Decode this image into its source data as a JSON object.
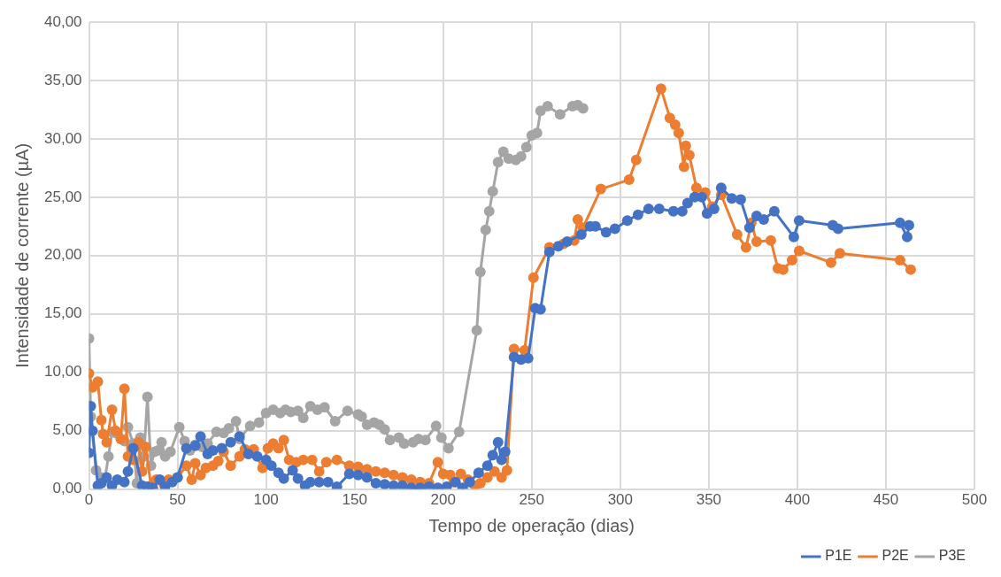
{
  "chart_data": {
    "type": "line",
    "xlabel": "Tempo de operação (dias)",
    "ylabel": "Intensidade de corrente (µA)",
    "xlim": [
      0,
      500
    ],
    "xticks": [
      0,
      50,
      100,
      150,
      200,
      250,
      300,
      350,
      400,
      450,
      500
    ],
    "ylim": [
      0,
      40
    ],
    "yticks": [
      {
        "value": 0,
        "label": "0,00"
      },
      {
        "value": 5,
        "label": "5,00"
      },
      {
        "value": 10,
        "label": "10,00"
      },
      {
        "value": 15,
        "label": "15,00"
      },
      {
        "value": 20,
        "label": "20,00"
      },
      {
        "value": 25,
        "label": "25,00"
      },
      {
        "value": 30,
        "label": "30,00"
      },
      {
        "value": 35,
        "label": "35,00"
      },
      {
        "value": 40,
        "label": "40,00"
      }
    ],
    "grid": true,
    "legend": "bottom right",
    "marker": "circle",
    "line_style": "solid",
    "series": [
      {
        "name": "P1E",
        "color": "#4472c4",
        "x": [
          0,
          1,
          2,
          5,
          7,
          10,
          13,
          16,
          20,
          22,
          25,
          30,
          33,
          36,
          40,
          43,
          47,
          50,
          55,
          60,
          63,
          67,
          70,
          75,
          80,
          85,
          90,
          95,
          100,
          103,
          107,
          110,
          115,
          118,
          122,
          125,
          130,
          135,
          140,
          147,
          152,
          157,
          162,
          167,
          172,
          177,
          182,
          187,
          192,
          197,
          202,
          207,
          211,
          215,
          220,
          225,
          228,
          231,
          233,
          235,
          240,
          244,
          248,
          252,
          255,
          260,
          265,
          270,
          278,
          283,
          286,
          292,
          297,
          304,
          310,
          316,
          322,
          330,
          335,
          338,
          342,
          346,
          349,
          353,
          357,
          363,
          368,
          373,
          377,
          381,
          387,
          398,
          401,
          420,
          423,
          458,
          462,
          463
        ],
        "values": [
          3.1,
          7.1,
          5,
          0.3,
          0.5,
          1,
          0.3,
          0.8,
          0.6,
          1.5,
          3.5,
          0.3,
          0.2,
          0.1,
          0.8,
          0.2,
          0.6,
          1,
          3.5,
          3.7,
          4.5,
          3,
          3.3,
          3.5,
          4,
          4.5,
          3,
          2.8,
          2.5,
          2,
          1.4,
          0.9,
          1.6,
          0.9,
          0.3,
          0.6,
          0.6,
          0.6,
          0.2,
          1.3,
          1.2,
          1,
          0.5,
          0.4,
          0.3,
          0.3,
          0.1,
          0.1,
          0.2,
          0.1,
          0.2,
          0.6,
          0.1,
          0.6,
          1.4,
          2,
          2.9,
          4,
          2.5,
          3.2,
          11.3,
          11.1,
          11.2,
          15.5,
          15.4,
          20.3,
          20.8,
          21.2,
          21.8,
          22.5,
          22.5,
          22,
          22.3,
          23,
          23.5,
          24,
          24,
          23.8,
          23.8,
          24.5,
          25,
          25,
          23.6,
          24,
          25.8,
          24.9,
          24.8,
          22.4,
          23.4,
          23.1,
          23.8,
          21.6,
          23,
          22.6,
          22.3,
          22.8,
          21.6,
          22.6
        ]
      },
      {
        "name": "P2E",
        "color": "#ed7d31",
        "x": [
          0,
          2,
          5,
          7,
          8,
          10,
          13,
          15,
          18,
          20,
          22,
          25,
          28,
          30,
          32,
          35,
          38,
          42,
          45,
          50,
          55,
          58,
          60,
          63,
          66,
          70,
          73,
          76,
          80,
          85,
          88,
          93,
          98,
          101,
          104,
          107,
          110,
          113,
          117,
          121,
          126,
          130,
          134,
          140,
          147,
          152,
          157,
          162,
          167,
          172,
          177,
          182,
          187,
          192,
          197,
          200,
          204,
          206,
          210,
          214,
          218,
          221,
          225,
          229,
          233,
          236,
          240,
          246,
          251,
          260,
          268,
          274,
          276,
          279,
          289,
          305,
          309,
          323,
          328,
          331,
          333,
          336,
          337,
          339,
          343,
          348,
          352,
          357,
          366,
          371,
          374,
          377,
          385,
          389,
          392,
          397,
          401,
          419,
          424,
          458,
          464
        ],
        "values": [
          9.9,
          8.7,
          9.2,
          5.9,
          4.7,
          4,
          6.8,
          5,
          4.3,
          8.6,
          2.8,
          2.5,
          4,
          1.5,
          3.6,
          0.3,
          0.8,
          0.5,
          0.8,
          1,
          2,
          0.8,
          2.2,
          1.2,
          1.8,
          2,
          2.4,
          3.2,
          2,
          2.8,
          3.4,
          3.4,
          1.8,
          3.5,
          3.9,
          3.5,
          4.2,
          2.5,
          2.3,
          2.5,
          2.5,
          1.5,
          2.3,
          2.5,
          2,
          1.9,
          1.7,
          1.5,
          1.4,
          1.2,
          1,
          0.8,
          0.6,
          0.5,
          2.3,
          1.3,
          1.2,
          0.6,
          1.3,
          0.8,
          0.3,
          0.5,
          1,
          1.5,
          1,
          1.6,
          12,
          11.9,
          18.1,
          20.7,
          21,
          21.3,
          23.1,
          22.4,
          25.7,
          26.5,
          28.2,
          34.3,
          31.8,
          31.2,
          30.5,
          27.6,
          29.4,
          28.6,
          25.8,
          25.4,
          24.2,
          25.2,
          21.8,
          20.7,
          22.8,
          21.2,
          21.3,
          18.9,
          18.8,
          19.6,
          20.4,
          19.4,
          20.2,
          19.6,
          18.8
        ]
      },
      {
        "name": "P3E",
        "color": "#a5a5a5",
        "x": [
          0,
          1,
          4,
          7,
          9,
          11,
          13,
          15,
          18,
          20,
          22,
          25,
          27,
          29,
          31,
          33,
          35,
          37,
          39,
          41,
          43,
          46,
          51,
          54,
          57,
          60,
          64,
          67,
          72,
          76,
          79,
          83,
          85,
          91,
          96,
          100,
          104,
          108,
          111,
          114,
          118,
          121,
          125,
          129,
          133,
          139,
          146,
          152,
          154,
          157,
          161,
          164,
          167,
          170,
          175,
          178,
          183,
          186,
          190,
          196,
          199,
          203,
          209,
          219,
          221,
          224,
          226,
          228,
          231,
          234,
          237,
          241,
          244,
          247,
          250,
          253,
          255,
          259,
          266,
          273,
          276,
          279
        ],
        "values": [
          12.9,
          6.2,
          1.6,
          1,
          0.9,
          2.8,
          4.9,
          4.8,
          4.3,
          4.1,
          5.3,
          3.9,
          0.5,
          4.4,
          2.8,
          7.9,
          2,
          3.2,
          3.3,
          4,
          2.8,
          3.2,
          5.3,
          4.1,
          3.3,
          3.8,
          3.6,
          3.9,
          4.9,
          4.8,
          5.2,
          5.8,
          4.3,
          5.4,
          5.7,
          6.5,
          6.8,
          6.5,
          6.8,
          6.6,
          6.7,
          6.1,
          7.1,
          6.8,
          7,
          5.8,
          6.7,
          6.4,
          6.2,
          5.5,
          5.7,
          5.5,
          5.1,
          4.2,
          4.4,
          3.9,
          4,
          4.3,
          4.2,
          5.4,
          4.4,
          3.5,
          4.9,
          13.6,
          18.6,
          22.2,
          23.8,
          25.5,
          28,
          28.9,
          28.3,
          28.2,
          28.5,
          29.3,
          30.3,
          30.5,
          32.4,
          32.8,
          32.1,
          32.8,
          32.9,
          32.6
        ]
      }
    ]
  }
}
